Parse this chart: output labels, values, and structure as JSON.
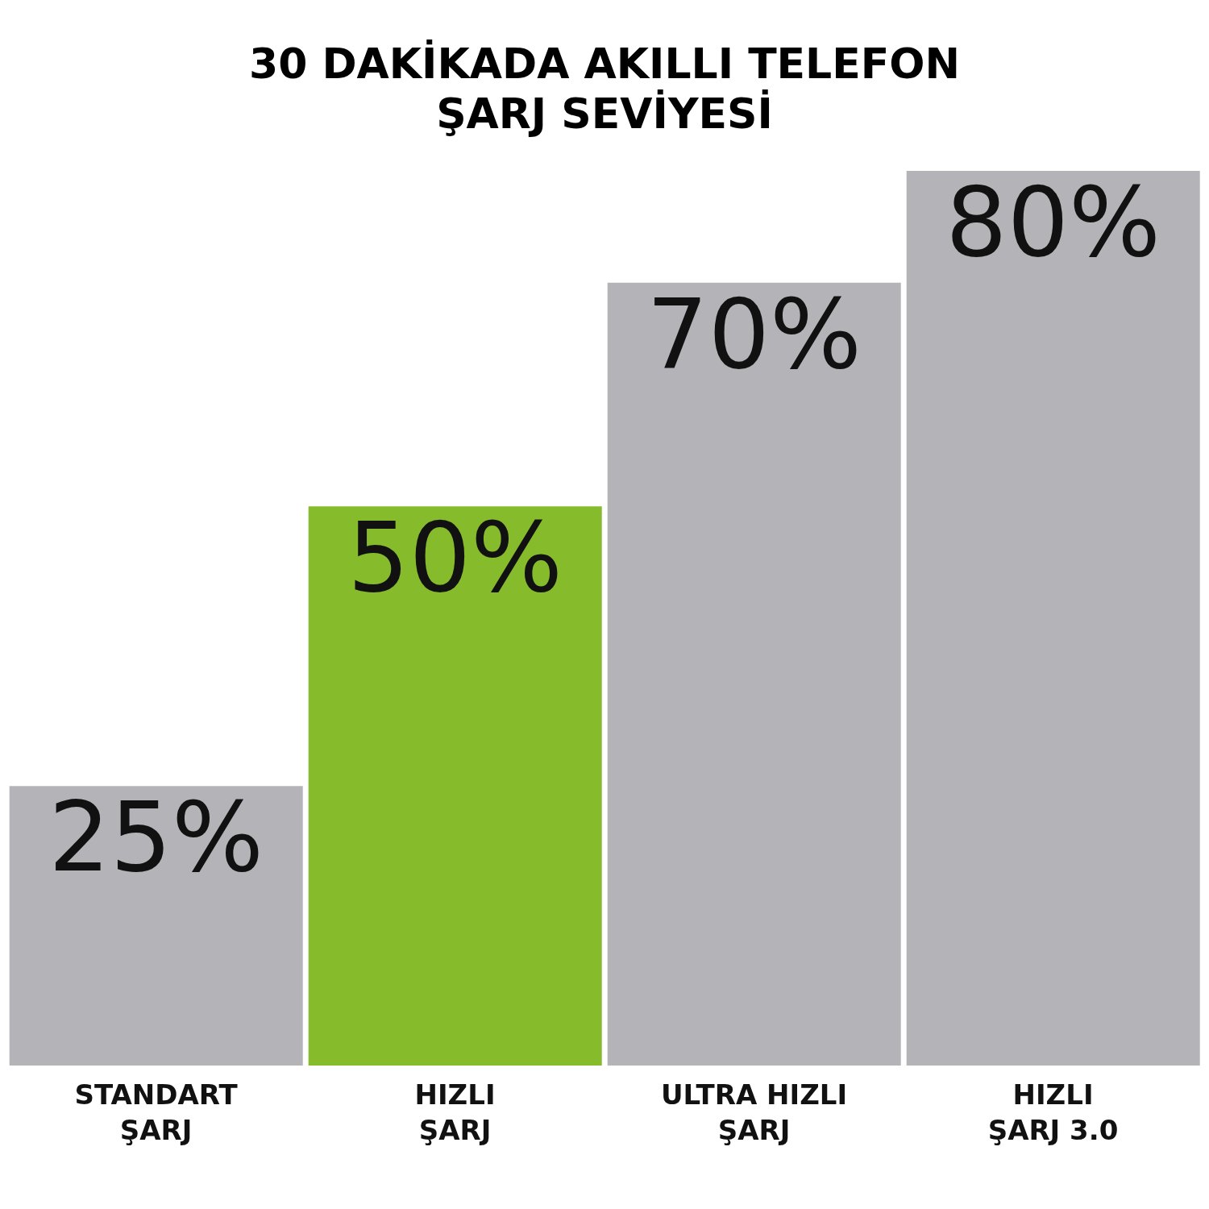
{
  "chart_data": {
    "type": "bar",
    "title": "30 DAKİKADA AKILLI TELEFON\nŞARJ SEVİYESİ",
    "categories": [
      "STANDART\nŞARJ",
      "HIZLI\nŞARJ",
      "ULTRA HIZLI\nŞARJ",
      "HIZLI\nŞARJ 3.0"
    ],
    "values": [
      25,
      50,
      70,
      80
    ],
    "colors": [
      "#b4b4b8",
      "#86bb2c",
      "#b4b4b8",
      "#b4b4b8"
    ],
    "value_labels": [
      "25%",
      "50%",
      "70%",
      "80%"
    ],
    "tick_labels": "x"
  }
}
